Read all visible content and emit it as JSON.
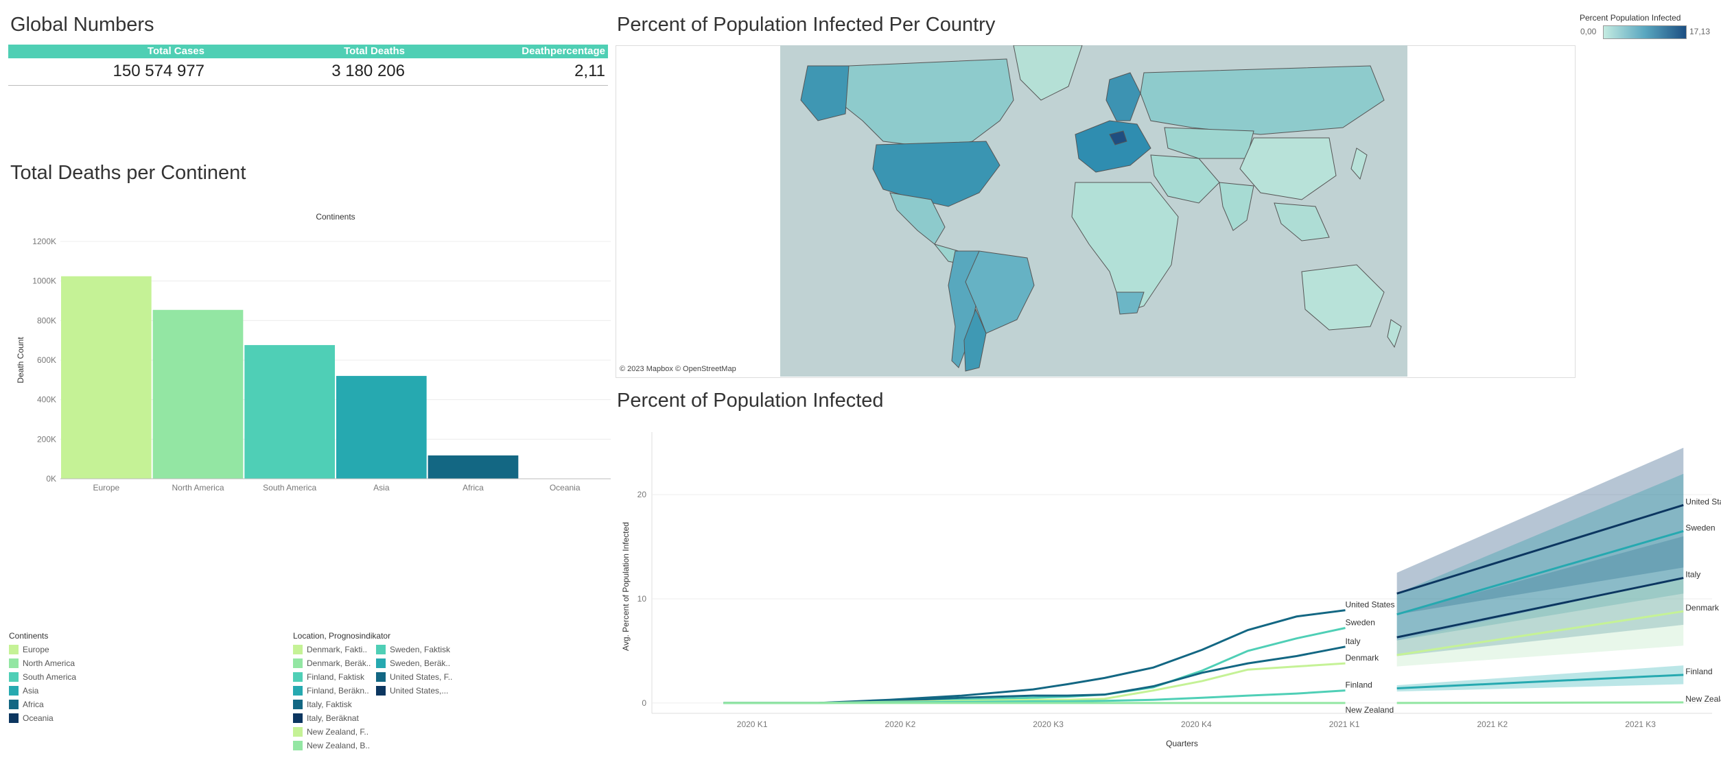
{
  "global": {
    "title": "Global Numbers",
    "headers": [
      "Total Cases",
      "Total Deaths",
      "Deathpercentage"
    ],
    "values": [
      "150 574 977",
      "3 180 206",
      "2,11"
    ],
    "header_color": "#4fcfb4"
  },
  "bar_chart": {
    "title": "Total Deaths per Continent",
    "top_label": "Continents"
  },
  "map": {
    "title": "Percent of Population Infected Per Country",
    "attribution": "© 2023 Mapbox © OpenStreetMap",
    "legend_title": "Percent Population Infected",
    "legend_min": "0,00",
    "legend_max": "17,13",
    "colors": {
      "low": "#b8e2d9",
      "mid": "#61b0c6",
      "high": "#23598a",
      "ocean": "#c0d2d3"
    }
  },
  "line_chart": {
    "title": "Percent of Population Infected"
  },
  "continents_legend": {
    "title": "Continents",
    "items": [
      {
        "label": "Europe",
        "color": "#c5f296"
      },
      {
        "label": "North America",
        "color": "#93e6a3"
      },
      {
        "label": "South America",
        "color": "#4fcfb6"
      },
      {
        "label": "Asia",
        "color": "#26a9b0"
      },
      {
        "label": "Africa",
        "color": "#136783"
      },
      {
        "label": "Oceania",
        "color": "#0c3660"
      }
    ]
  },
  "location_legend": {
    "title": "Location, Prognosindikator",
    "col1": [
      {
        "label": "Denmark, Fakti..",
        "color": "#c5f296"
      },
      {
        "label": "Denmark, Beräk..",
        "color": "#93e6a3"
      },
      {
        "label": "Finland, Faktisk",
        "color": "#4fcfb6"
      },
      {
        "label": "Finland, Beräkn..",
        "color": "#26a9b0"
      },
      {
        "label": "Italy, Faktisk",
        "color": "#136783"
      },
      {
        "label": "Italy, Beräknat",
        "color": "#0c3660"
      },
      {
        "label": "New Zealand, F..",
        "color": "#c5f296"
      },
      {
        "label": "New Zealand, B..",
        "color": "#93e6a3"
      }
    ],
    "col2": [
      {
        "label": "Sweden, Faktisk",
        "color": "#4fcfb6"
      },
      {
        "label": "Sweden, Beräk..",
        "color": "#26a9b0"
      },
      {
        "label": "United States, F..",
        "color": "#136783"
      },
      {
        "label": "United States,...",
        "color": "#0c3660"
      }
    ]
  },
  "chart_data": [
    {
      "type": "bar",
      "title": "Total Deaths per Continent",
      "xlabel": "Continents",
      "ylabel": "Death Count",
      "categories": [
        "Europe",
        "North America",
        "South America",
        "Asia",
        "Africa",
        "Oceania"
      ],
      "values": [
        1024000,
        854000,
        676000,
        520000,
        118000,
        1000
      ],
      "colors": [
        "#c5f296",
        "#93e6a3",
        "#4fcfb6",
        "#26a9b0",
        "#136783",
        "#0c3660"
      ],
      "ylim": [
        0,
        1200000
      ],
      "yticks": [
        0,
        200000,
        400000,
        600000,
        800000,
        1000000,
        1200000
      ],
      "ytick_labels": [
        "0K",
        "200K",
        "400K",
        "600K",
        "800K",
        "1000K",
        "1200K"
      ],
      "grid": true
    },
    {
      "type": "line",
      "title": "Percent of Population Infected",
      "xlabel": "Quarters",
      "ylabel": "Avg. Percent of Population Infected",
      "x_tick_labels": [
        "2020 K1",
        "2020 K2",
        "2020 K3",
        "2020 K4",
        "2021 K1",
        "2021 K2",
        "2021 K3"
      ],
      "ylim": [
        -1,
        26
      ],
      "yticks": [
        0,
        10,
        20
      ],
      "actual_x": [
        2019.75,
        2020.08,
        2020.33,
        2020.58,
        2020.83,
        2020.95,
        2021.08,
        2021.25,
        2021.42,
        2021.58,
        2021.75,
        2021.92
      ],
      "forecast_x": [
        2022.1,
        2023.1
      ],
      "series": [
        {
          "name": "United States",
          "color": "#136783",
          "actual": [
            0,
            0,
            0.3,
            0.7,
            1.3,
            1.8,
            2.4,
            3.4,
            5.1,
            7.0,
            8.3,
            8.9
          ],
          "forecast": [
            10.5,
            19.0
          ],
          "band": [
            [
              8.5,
              12.5
            ],
            [
              13.0,
              24.5
            ]
          ],
          "band_color": "#2f5a84"
        },
        {
          "name": "Sweden",
          "color": "#4fcfb6",
          "actual": [
            0,
            0,
            0.1,
            0.3,
            0.5,
            0.6,
            0.8,
            1.5,
            3.1,
            5.0,
            6.2,
            7.2
          ],
          "forecast": [
            8.5,
            16.5
          ],
          "band": [
            [
              6.0,
              10.5
            ],
            [
              10.5,
              22.0
            ]
          ],
          "band_color": "#2b9aa6"
        },
        {
          "name": "Italy",
          "color": "#136783",
          "actual": [
            0,
            0,
            0.2,
            0.5,
            0.7,
            0.7,
            0.8,
            1.6,
            2.9,
            3.8,
            4.5,
            5.4
          ],
          "forecast": [
            6.3,
            12.0
          ],
          "band": [
            [
              4.5,
              8.5
            ],
            [
              7.5,
              16.0
            ]
          ],
          "band_color": "#3b7f9c"
        },
        {
          "name": "Denmark",
          "color": "#c5f296",
          "actual": [
            0,
            0,
            0.1,
            0.2,
            0.3,
            0.3,
            0.4,
            1.2,
            2.1,
            3.2,
            3.5,
            3.8
          ],
          "forecast": [
            4.6,
            8.8
          ],
          "band": [
            [
              3.5,
              6.0
            ],
            [
              5.5,
              12.0
            ]
          ],
          "band_color": "#bde9c2"
        },
        {
          "name": "Finland",
          "color": "#4fcfb6",
          "actual": [
            0,
            0,
            0.05,
            0.1,
            0.15,
            0.15,
            0.2,
            0.3,
            0.5,
            0.7,
            0.9,
            1.2
          ],
          "forecast": [
            1.4,
            2.7
          ],
          "band": [
            [
              1.1,
              1.7
            ],
            [
              1.8,
              3.6
            ]
          ],
          "band_color": "#3cb7b9"
        },
        {
          "name": "New Zealand",
          "color": "#93e6a3",
          "actual": [
            0,
            0,
            0,
            0,
            0,
            0,
            0,
            0,
            0,
            0,
            0,
            0
          ],
          "forecast": [
            0.0,
            0.05
          ],
          "band": [
            [
              0,
              0.1
            ],
            [
              0,
              0.15
            ]
          ],
          "band_color": "#93e6a3"
        }
      ]
    }
  ]
}
